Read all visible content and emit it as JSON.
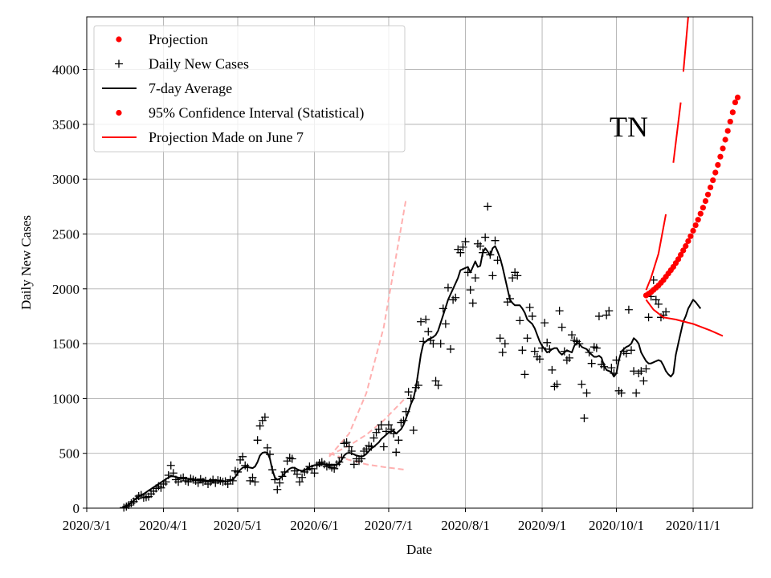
{
  "chart_data": {
    "type": "scatter",
    "state_label": "TN",
    "xlabel": "Date",
    "ylabel": "Daily New Cases",
    "x_domain": [
      "2020-03-01",
      "2020-11-25"
    ],
    "ylim": [
      0,
      4480
    ],
    "grid": true,
    "legend_position": "top-left",
    "x_ticks": [
      {
        "date": "2020-03-01",
        "label": "2020/3/1"
      },
      {
        "date": "2020-04-01",
        "label": "2020/4/1"
      },
      {
        "date": "2020-05-01",
        "label": "2020/5/1"
      },
      {
        "date": "2020-06-01",
        "label": "2020/6/1"
      },
      {
        "date": "2020-07-01",
        "label": "2020/7/1"
      },
      {
        "date": "2020-08-01",
        "label": "2020/8/1"
      },
      {
        "date": "2020-09-01",
        "label": "2020/9/1"
      },
      {
        "date": "2020-10-01",
        "label": "2020/10/1"
      },
      {
        "date": "2020-11-01",
        "label": "2020/11/1"
      }
    ],
    "y_ticks": [
      0,
      500,
      1000,
      1500,
      2000,
      2500,
      3000,
      3500,
      4000
    ],
    "legend": [
      {
        "label": "Projection",
        "marker": "dot",
        "color": "#ff0000"
      },
      {
        "label": "Daily New Cases",
        "marker": "plus",
        "color": "#000000"
      },
      {
        "label": "7-day Average",
        "marker": "line",
        "color": "#000000"
      },
      {
        "label": "95% Confidence Interval (Statistical)",
        "marker": "dot",
        "color": "#ff0000"
      },
      {
        "label": "Projection Made on June 7",
        "marker": "line",
        "color": "#ff0000"
      }
    ],
    "colors": {
      "daily": "#000000",
      "average": "#000000",
      "projection": "#ff0000",
      "june7": "#ffb0b0"
    },
    "daily_new_cases": {
      "start_date": "2020-03-16",
      "values": [
        5,
        15,
        28,
        45,
        60,
        85,
        110,
        120,
        95,
        100,
        105,
        130,
        155,
        180,
        200,
        185,
        220,
        240,
        300,
        390,
        320,
        260,
        240,
        270,
        280,
        250,
        240,
        270,
        260,
        250,
        230,
        265,
        240,
        250,
        220,
        240,
        260,
        230,
        255,
        250,
        240,
        245,
        220,
        260,
        250,
        340,
        330,
        440,
        470,
        390,
        370,
        250,
        280,
        240,
        620,
        750,
        800,
        830,
        550,
        490,
        350,
        260,
        170,
        230,
        290,
        330,
        430,
        460,
        450,
        340,
        310,
        240,
        280,
        330,
        350,
        380,
        360,
        320,
        390,
        410,
        420,
        400,
        380,
        390,
        370,
        360,
        400,
        420,
        460,
        590,
        600,
        560,
        520,
        400,
        450,
        430,
        450,
        520,
        540,
        570,
        560,
        640,
        690,
        720,
        760,
        560,
        700,
        760,
        720,
        680,
        510,
        620,
        780,
        800,
        880,
        1060,
        1000,
        710,
        1100,
        1120,
        1700,
        1520,
        1720,
        1610,
        1530,
        1500,
        1160,
        1120,
        1500,
        1820,
        1680,
        2010,
        1450,
        1900,
        1920,
        2360,
        2330,
        2380,
        2430,
        2150,
        1990,
        1870,
        2100,
        2410,
        2390,
        2330,
        2470,
        2750,
        2310,
        2120,
        2440,
        2260,
        1550,
        1420,
        1500,
        1880,
        1910,
        2100,
        2150,
        2120,
        1710,
        1440,
        1220,
        1550,
        1830,
        1750,
        1430,
        1380,
        1360,
        1460,
        1690,
        1510,
        1450,
        1260,
        1110,
        1130,
        1800,
        1650,
        1430,
        1350,
        1370,
        1580,
        1530,
        1520,
        1500,
        1130,
        820,
        1050,
        1420,
        1320,
        1470,
        1460,
        1750,
        1310,
        1290,
        1760,
        1800,
        1280,
        1230,
        1350,
        1070,
        1050,
        1430,
        1410,
        1810,
        1440,
        1250,
        1050,
        1230,
        1250,
        1160,
        1270,
        1740,
        1930,
        2080,
        1900,
        1860,
        1740,
        1760,
        1790
      ]
    },
    "seven_day_average": {
      "start_date": "2020-03-16",
      "values": [
        10,
        20,
        35,
        50,
        70,
        90,
        105,
        120,
        130,
        145,
        160,
        175,
        190,
        205,
        220,
        235,
        250,
        265,
        280,
        290,
        290,
        285,
        280,
        275,
        270,
        268,
        265,
        262,
        260,
        258,
        255,
        255,
        255,
        252,
        250,
        250,
        250,
        248,
        248,
        248,
        247,
        245,
        245,
        250,
        262,
        285,
        320,
        350,
        370,
        378,
        376,
        370,
        365,
        380,
        420,
        480,
        505,
        510,
        505,
        450,
        350,
        280,
        260,
        270,
        290,
        320,
        340,
        360,
        370,
        368,
        355,
        345,
        340,
        345,
        360,
        375,
        385,
        392,
        395,
        398,
        400,
        402,
        400,
        398,
        395,
        392,
        395,
        410,
        440,
        480,
        500,
        505,
        500,
        490,
        480,
        475,
        470,
        478,
        495,
        520,
        545,
        560,
        580,
        600,
        630,
        650,
        670,
        690,
        700,
        705,
        680,
        700,
        720,
        760,
        820,
        880,
        950,
        1000,
        1100,
        1250,
        1400,
        1500,
        1520,
        1540,
        1550,
        1560,
        1580,
        1620,
        1690,
        1760,
        1830,
        1900,
        1950,
        2000,
        2050,
        2100,
        2170,
        2180,
        2190,
        2200,
        2150,
        2200,
        2250,
        2200,
        2210,
        2330,
        2370,
        2340,
        2300,
        2370,
        2390,
        2340,
        2280,
        2200,
        2100,
        2000,
        1900,
        1870,
        1850,
        1850,
        1850,
        1820,
        1780,
        1720,
        1700,
        1680,
        1640,
        1580,
        1520,
        1480,
        1450,
        1420,
        1430,
        1450,
        1460,
        1460,
        1420,
        1400,
        1420,
        1440,
        1430,
        1420,
        1480,
        1510,
        1500,
        1470,
        1460,
        1450,
        1420,
        1400,
        1380,
        1380,
        1390,
        1370,
        1300,
        1260,
        1250,
        1240,
        1200,
        1230,
        1350,
        1430,
        1450,
        1470,
        1480,
        1500,
        1550,
        1530,
        1500,
        1420,
        1380,
        1340,
        1320,
        1320,
        1330,
        1340,
        1350,
        1340,
        1300,
        1250,
        1220,
        1200,
        1230,
        1400,
        1500,
        1600,
        1700,
        1750,
        1820,
        1860,
        1900,
        1880,
        1850,
        1820
      ]
    },
    "projection": {
      "start_date": "2020-10-13",
      "values": [
        1940,
        1955,
        1970,
        1990,
        2010,
        2030,
        2055,
        2080,
        2110,
        2140,
        2170,
        2200,
        2235,
        2270,
        2310,
        2350,
        2390,
        2435,
        2480,
        2530,
        2580,
        2630,
        2685,
        2740,
        2800,
        2860,
        2925,
        2990,
        3060,
        3130,
        3205,
        3280,
        3360,
        3440,
        3525,
        3610,
        3700,
        3745
      ]
    },
    "confidence_upper": {
      "dates": [
        "2020-10-13",
        "2020-10-15",
        "2020-10-18",
        "2020-10-21",
        "2020-10-24",
        "2020-10-27",
        "2020-10-30"
      ],
      "values": [
        1990,
        2100,
        2320,
        2680,
        3150,
        3700,
        4500
      ],
      "segments": [
        [
          0,
          3
        ],
        [
          4,
          5
        ],
        [
          6,
          6
        ]
      ],
      "extends_above_plot": true
    },
    "confidence_lower": {
      "dates": [
        "2020-10-13",
        "2020-10-16",
        "2020-10-20",
        "2020-10-25",
        "2020-11-01",
        "2020-11-08",
        "2020-11-13"
      ],
      "values": [
        1900,
        1810,
        1740,
        1720,
        1680,
        1620,
        1570
      ]
    },
    "june7_projection": {
      "upper": {
        "dates": [
          "2020-06-07",
          "2020-06-15",
          "2020-06-22",
          "2020-06-29",
          "2020-07-08"
        ],
        "values": [
          470,
          680,
          1050,
          1650,
          2820
        ]
      },
      "middle": {
        "dates": [
          "2020-06-07",
          "2020-06-15",
          "2020-06-22",
          "2020-06-29",
          "2020-07-08"
        ],
        "values": [
          480,
          570,
          670,
          800,
          1010
        ]
      },
      "lower": {
        "dates": [
          "2020-06-07",
          "2020-06-15",
          "2020-06-22",
          "2020-06-29",
          "2020-07-08"
        ],
        "values": [
          500,
          440,
          400,
          375,
          350
        ]
      }
    }
  }
}
